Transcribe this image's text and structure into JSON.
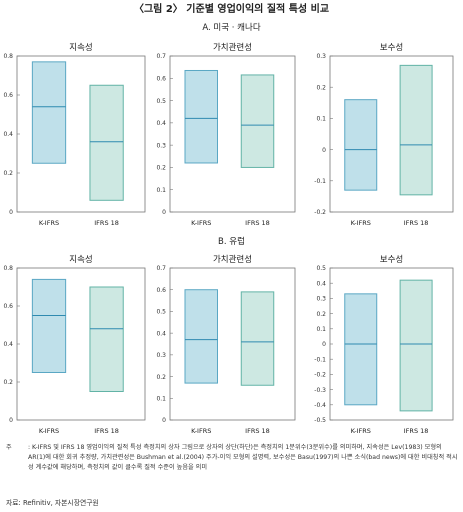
{
  "figure": {
    "title": "〈그림 2〉 기준별 영업이익의 질적 특성 비교",
    "note_prefix": "주",
    "note": ": K-IFRS 및 IFRS 18 영업이익의 질적 특성 측정치의 상자 그림으로 상자의 상단(하단)은 측정치의 1분위수(3분위수)를 의미하며, 지속성은 Lev(1983) 모형의 AR(1)에 대한 회귀 추정량, 가치관련성은 Bushman et al.(2004) 주가-이익 모형의 설명력, 보수성은 Basu(1997)의 나쁜 소식(bad news)에 대한 비대칭적 적시성 계수값에 해당하며, 측정치의 값이 클수록 질적 수준이 높음을 의미",
    "source": "자료: Refinitiv, 자본시장연구원"
  },
  "colors": {
    "box_fill": "#bfe0ea",
    "box_stroke": "#5aa7c4",
    "box2_fill": "#cde8e2",
    "box2_stroke": "#62b3a6",
    "median": "#2f8ab0",
    "frame": "#777777",
    "text": "#222222"
  },
  "chart_data": [
    {
      "type": "boxplot",
      "section": "A. 미국 · 캐나다",
      "title": "지속성",
      "categories": [
        "K-IFRS",
        "IFRS 18"
      ],
      "boxes": [
        {
          "q1": 0.25,
          "median": 0.54,
          "q3": 0.77
        },
        {
          "q1": 0.06,
          "median": 0.36,
          "q3": 0.65
        }
      ],
      "ylim": [
        0,
        0.8
      ],
      "yticks": [
        "0",
        "0.2",
        "0.4",
        "0.6",
        "0.8"
      ]
    },
    {
      "type": "boxplot",
      "section": "A. 미국 · 캐나다",
      "title": "가치관련성",
      "categories": [
        "K-IFRS",
        "IFRS 18"
      ],
      "boxes": [
        {
          "q1": 0.22,
          "median": 0.42,
          "q3": 0.635
        },
        {
          "q1": 0.2,
          "median": 0.39,
          "q3": 0.615
        }
      ],
      "ylim": [
        0,
        0.7
      ],
      "yticks": [
        "0",
        "0.1",
        "0.2",
        "0.3",
        "0.4",
        "0.5",
        "0.6",
        "0.7"
      ]
    },
    {
      "type": "boxplot",
      "section": "A. 미국 · 캐나다",
      "title": "보수성",
      "categories": [
        "K-IFRS",
        "IFRS 18"
      ],
      "boxes": [
        {
          "q1": -0.13,
          "median": 0.0,
          "q3": 0.16
        },
        {
          "q1": -0.145,
          "median": 0.015,
          "q3": 0.27
        }
      ],
      "ylim": [
        -0.2,
        0.3
      ],
      "yticks": [
        "-0.2",
        "-0.1",
        "0",
        "0.1",
        "0.2",
        "0.3"
      ]
    },
    {
      "type": "boxplot",
      "section": "B. 유럽",
      "title": "지속성",
      "categories": [
        "K-IFRS",
        "IFRS 18"
      ],
      "boxes": [
        {
          "q1": 0.25,
          "median": 0.55,
          "q3": 0.74
        },
        {
          "q1": 0.15,
          "median": 0.48,
          "q3": 0.7
        }
      ],
      "ylim": [
        0,
        0.8
      ],
      "yticks": [
        "0",
        "0.2",
        "0.4",
        "0.6",
        "0.8"
      ]
    },
    {
      "type": "boxplot",
      "section": "B. 유럽",
      "title": "가치관련성",
      "categories": [
        "K-IFRS",
        "IFRS 18"
      ],
      "boxes": [
        {
          "q1": 0.17,
          "median": 0.37,
          "q3": 0.6
        },
        {
          "q1": 0.16,
          "median": 0.36,
          "q3": 0.59
        }
      ],
      "ylim": [
        0,
        0.7
      ],
      "yticks": [
        "0",
        "0.1",
        "0.2",
        "0.3",
        "0.4",
        "0.5",
        "0.6",
        "0.7"
      ]
    },
    {
      "type": "boxplot",
      "section": "B. 유럽",
      "title": "보수성",
      "categories": [
        "K-IFRS",
        "IFRS 18"
      ],
      "boxes": [
        {
          "q1": -0.4,
          "median": 0.0,
          "q3": 0.33
        },
        {
          "q1": -0.44,
          "median": 0.0,
          "q3": 0.42
        }
      ],
      "ylim": [
        -0.5,
        0.5
      ],
      "yticks": [
        "-0.5",
        "-0.4",
        "-0.3",
        "-0.2",
        "-0.1",
        "0",
        "0.1",
        "0.2",
        "0.3",
        "0.4",
        "0.5"
      ]
    }
  ],
  "sections": [
    "A. 미국 · 캐나다",
    "B. 유럽"
  ]
}
